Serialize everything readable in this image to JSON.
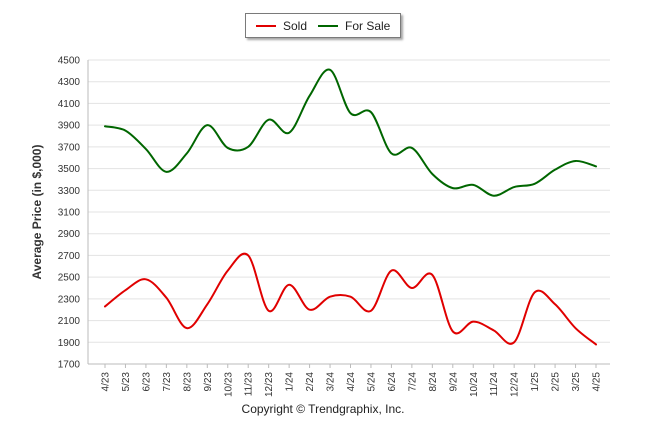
{
  "chart_data": {
    "type": "line",
    "title": "",
    "xlabel": "",
    "ylabel": "Average Price (in $,000)",
    "categories": [
      "4/23",
      "5/23",
      "6/23",
      "7/23",
      "8/23",
      "9/23",
      "10/23",
      "11/23",
      "12/23",
      "1/24",
      "2/24",
      "3/24",
      "4/24",
      "5/24",
      "6/24",
      "7/24",
      "8/24",
      "9/24",
      "10/24",
      "11/24",
      "12/24",
      "1/25",
      "2/25",
      "3/25",
      "4/25"
    ],
    "yticks": [
      1700,
      1900,
      2100,
      2300,
      2500,
      2700,
      2900,
      3100,
      3300,
      3500,
      3700,
      3900,
      4100,
      4300,
      4500
    ],
    "ylim": [
      1700,
      4500
    ],
    "grid": true,
    "legend_position": "top-center",
    "series": [
      {
        "name": "Sold",
        "color": "#e00000",
        "values": [
          2230,
          2380,
          2480,
          2310,
          2030,
          2250,
          2560,
          2700,
          2190,
          2430,
          2200,
          2320,
          2320,
          2190,
          2560,
          2400,
          2520,
          2000,
          2090,
          2010,
          1900,
          2360,
          2250,
          2030,
          1880
        ]
      },
      {
        "name": "For Sale",
        "color": "#006600",
        "values": [
          3890,
          3850,
          3680,
          3470,
          3640,
          3900,
          3690,
          3700,
          3950,
          3830,
          4170,
          4410,
          4010,
          4020,
          3640,
          3690,
          3450,
          3320,
          3350,
          3250,
          3330,
          3360,
          3490,
          3570,
          3520
        ]
      }
    ]
  },
  "footer": {
    "copyright": "Copyright © Trendgraphix, Inc."
  }
}
